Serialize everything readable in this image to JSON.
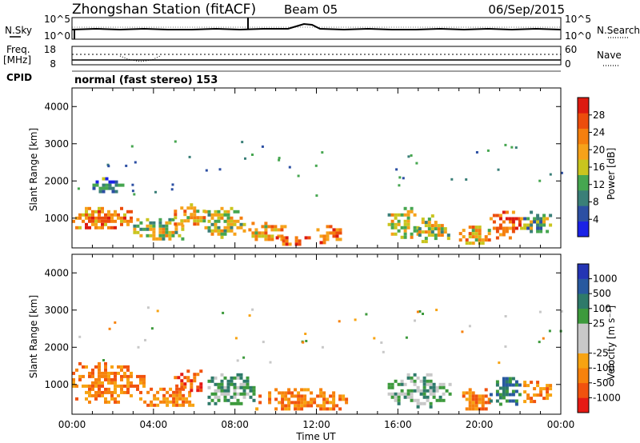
{
  "header": {
    "station": "Zhongshan Station (fitACF)",
    "beam": "Beam 05",
    "date": "06/Sep/2015"
  },
  "labels": {
    "nsky": "N.Sky",
    "nsearch": "N.Search",
    "freq": "Freq.",
    "mhz": "[MHz]",
    "nave": "Nave",
    "cpid": "CPID",
    "mode": "normal (fast stereo) 153",
    "time_axis": "Time UT",
    "range_axis": "Slant Range [km]",
    "power_title": "Power",
    "power_unit": "[dB]",
    "velocity_title": "Velocity",
    "velocity_unit": "[m s⁻¹]"
  },
  "noise_panel": {
    "left_ticks": [
      "10^5",
      "10^0"
    ],
    "right_ticks": [
      "10^5",
      "10^0"
    ]
  },
  "freq_panel": {
    "left_ticks": [
      "18",
      "8"
    ],
    "right_ticks": [
      "60",
      "0"
    ]
  },
  "colors": {
    "power_scale": [
      "#1a22e6",
      "#2c4fa3",
      "#3a7f78",
      "#46a650",
      "#c9c51e",
      "#f6a21a",
      "#f57f0e",
      "#ec4d0c",
      "#dd1a10"
    ],
    "velocity_scale": [
      "#e61a14",
      "#f1520e",
      "#f7820c",
      "#f7a312",
      "#c8c8c8",
      "#c8c8c8",
      "#3d9a3c",
      "#2e7a6a",
      "#28599f",
      "#2435b4"
    ]
  },
  "chart_data": [
    {
      "type": "heatmap",
      "name": "power",
      "xlabel": "Time UT",
      "ylabel": "Slant Range [km]",
      "x_ticks": [
        "00:00",
        "04:00",
        "08:00",
        "12:00",
        "16:00",
        "20:00",
        "00:00"
      ],
      "xlim_hours": [
        0,
        24
      ],
      "ylim_km": [
        200,
        4500
      ],
      "y_ticks": [
        1000,
        2000,
        3000,
        4000
      ],
      "colorbar": {
        "title": "Power [dB]",
        "range": [
          0,
          32
        ],
        "ticks": [
          "4",
          "8",
          "12",
          "16",
          "20",
          "24",
          "28"
        ]
      },
      "echo_regions": [
        {
          "x": [
            0.0,
            3.0
          ],
          "y": [
            700,
            1300
          ],
          "level": 24
        },
        {
          "x": [
            1.0,
            2.5
          ],
          "y": [
            1700,
            2100
          ],
          "level": 8
        },
        {
          "x": [
            3.0,
            5.5
          ],
          "y": [
            400,
            1000
          ],
          "level": 16
        },
        {
          "x": [
            5.0,
            6.5
          ],
          "y": [
            800,
            1400
          ],
          "level": 20
        },
        {
          "x": [
            6.5,
            8.5
          ],
          "y": [
            500,
            1300
          ],
          "level": 16
        },
        {
          "x": [
            8.5,
            10.5
          ],
          "y": [
            400,
            900
          ],
          "level": 20
        },
        {
          "x": [
            10.0,
            12.0
          ],
          "y": [
            300,
            600
          ],
          "level": 28
        },
        {
          "x": [
            12.0,
            13.3
          ],
          "y": [
            300,
            900
          ],
          "level": 24
        },
        {
          "x": [
            15.5,
            17.0
          ],
          "y": [
            500,
            1300
          ],
          "level": 16
        },
        {
          "x": [
            17.0,
            18.5
          ],
          "y": [
            400,
            1100
          ],
          "level": 16
        },
        {
          "x": [
            19.0,
            20.5
          ],
          "y": [
            300,
            800
          ],
          "level": 20
        },
        {
          "x": [
            20.5,
            22.0
          ],
          "y": [
            500,
            1200
          ],
          "level": 28
        },
        {
          "x": [
            22.0,
            23.5
          ],
          "y": [
            600,
            1200
          ],
          "level": 12
        }
      ]
    },
    {
      "type": "heatmap",
      "name": "velocity",
      "xlabel": "Time UT",
      "ylabel": "Slant Range [km]",
      "x_ticks": [
        "00:00",
        "04:00",
        "08:00",
        "12:00",
        "16:00",
        "20:00",
        "00:00"
      ],
      "xlim_hours": [
        0,
        24
      ],
      "ylim_km": [
        200,
        4500
      ],
      "y_ticks": [
        1000,
        2000,
        3000,
        4000
      ],
      "colorbar": {
        "title": "Velocity [m s-1]",
        "ticks": [
          "-1000",
          "-500",
          "-100",
          "-25",
          "25",
          "100",
          "500",
          "1000"
        ]
      },
      "echo_regions": [
        {
          "x": [
            0.0,
            3.5
          ],
          "y": [
            500,
            1600
          ],
          "v": -100
        },
        {
          "x": [
            3.5,
            6.0
          ],
          "y": [
            400,
            1000
          ],
          "v": -100
        },
        {
          "x": [
            5.0,
            6.5
          ],
          "y": [
            800,
            1400
          ],
          "v": -500
        },
        {
          "x": [
            6.5,
            9.0
          ],
          "y": [
            500,
            1300
          ],
          "v": 100
        },
        {
          "x": [
            9.0,
            13.5
          ],
          "y": [
            300,
            900
          ],
          "v": -100
        },
        {
          "x": [
            15.5,
            18.5
          ],
          "y": [
            400,
            1300
          ],
          "v": 100
        },
        {
          "x": [
            19.0,
            20.5
          ],
          "y": [
            300,
            900
          ],
          "v": -100
        },
        {
          "x": [
            20.5,
            22.0
          ],
          "y": [
            500,
            1200
          ],
          "v": 500
        },
        {
          "x": [
            22.0,
            23.5
          ],
          "y": [
            500,
            1100
          ],
          "v": -100
        }
      ]
    }
  ]
}
